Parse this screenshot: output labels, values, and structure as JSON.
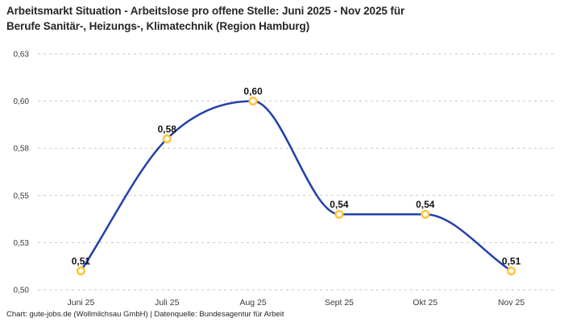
{
  "header": {
    "title_lines": [
      "Arbeitsmarkt Situation - Arbeitslose pro offene Stelle: Juni 2025 - Nov 2025 für",
      "Berufe Sanitär-, Heizungs-, Klimatechnik (Region Hamburg)"
    ]
  },
  "footer": {
    "source": "Chart: gute-jobs.de (Wollmilchsau GmbH) | Datenquelle: Bundesagentur für Arbeit"
  },
  "chart_data": {
    "type": "line",
    "title": "Arbeitsmarkt Situation - Arbeitslose pro offene Stelle: Juni 2025 - Nov 2025 für Berufe Sanitär-, Heizungs-, Klimatechnik (Region Hamburg)",
    "categories": [
      "Juni 25",
      "Juli 25",
      "Aug 25",
      "Sept 25",
      "Okt 25",
      "Nov 25"
    ],
    "values": [
      0.51,
      0.58,
      0.6,
      0.54,
      0.54,
      0.51
    ],
    "value_labels": [
      "0,51",
      "0,58",
      "0,60",
      "0,54",
      "0,54",
      "0,51"
    ],
    "ylim": [
      0.5,
      0.625
    ],
    "yticks": [
      {
        "value": 0.5,
        "label": "0,50"
      },
      {
        "value": 0.525,
        "label": "0,53"
      },
      {
        "value": 0.55,
        "label": "0,55"
      },
      {
        "value": 0.575,
        "label": "0,58"
      },
      {
        "value": 0.6,
        "label": "0,60"
      },
      {
        "value": 0.625,
        "label": "0,63"
      }
    ],
    "xlabel": "",
    "ylabel": "",
    "grid": "horizontal-dashed",
    "legend": "none",
    "line_style": "smooth-spline",
    "colors": {
      "line": "#2340A8",
      "marker_stroke": "#FFC233",
      "marker_fill": "#FFFFFF",
      "grid": "#C6C6C6",
      "tick_label": "#3A3A3A",
      "data_label": "#121212",
      "title": "#262626",
      "background": "#FFFFFF"
    }
  }
}
